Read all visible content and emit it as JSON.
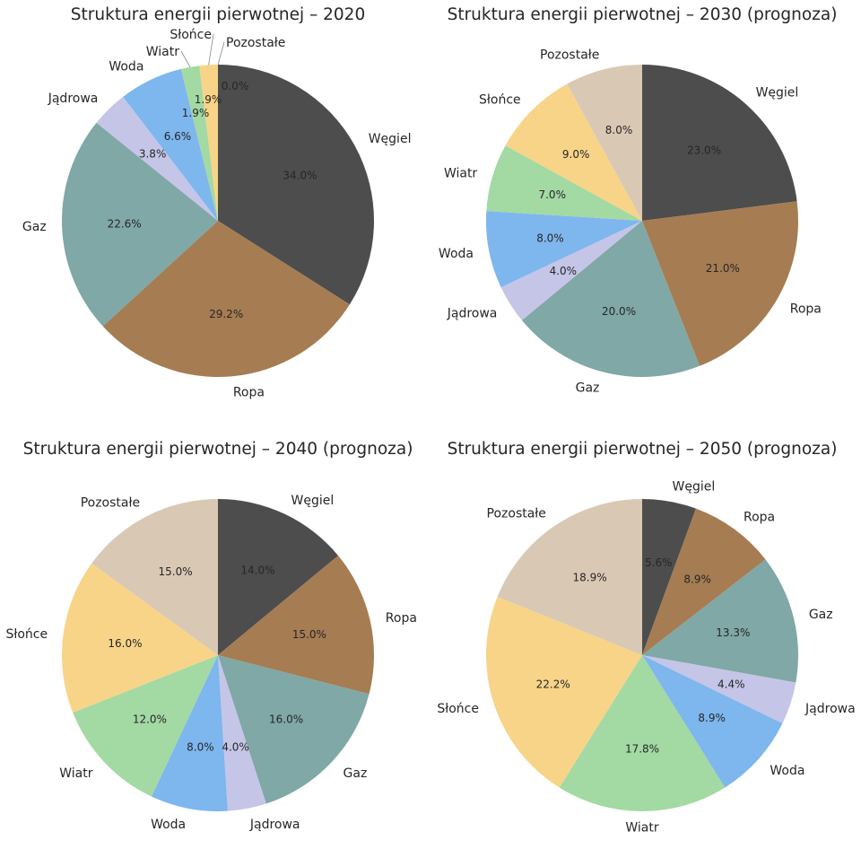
{
  "chart_data": [
    {
      "type": "pie",
      "title": "Struktura energii pierwotnej – 2020",
      "categories": [
        "Węgiel",
        "Ropa",
        "Gaz",
        "Jądrowa",
        "Woda",
        "Wiatr",
        "Słońce",
        "Pozostałe"
      ],
      "values": [
        34.0,
        29.2,
        22.6,
        3.8,
        6.6,
        1.9,
        1.9,
        0.0
      ],
      "pct_labels": [
        "34.0%",
        "29.2%",
        "22.6%",
        "3.8%",
        "6.6%",
        "1.9%",
        "1.9%",
        "0.0%"
      ]
    },
    {
      "type": "pie",
      "title": "Struktura energii pierwotnej – 2030 (prognoza)",
      "categories": [
        "Węgiel",
        "Ropa",
        "Gaz",
        "Jądrowa",
        "Woda",
        "Wiatr",
        "Słońce",
        "Pozostałe"
      ],
      "values": [
        23.0,
        21.0,
        20.0,
        4.0,
        8.0,
        7.0,
        9.0,
        8.0
      ],
      "pct_labels": [
        "23.0%",
        "21.0%",
        "20.0%",
        "4.0%",
        "8.0%",
        "7.0%",
        "9.0%",
        "8.0%"
      ]
    },
    {
      "type": "pie",
      "title": "Struktura energii pierwotnej – 2040 (prognoza)",
      "categories": [
        "Węgiel",
        "Ropa",
        "Gaz",
        "Jądrowa",
        "Woda",
        "Wiatr",
        "Słońce",
        "Pozostałe"
      ],
      "values": [
        14.0,
        15.0,
        16.0,
        4.0,
        8.0,
        12.0,
        16.0,
        15.0
      ],
      "pct_labels": [
        "14.0%",
        "15.0%",
        "16.0%",
        "4.0%",
        "8.0%",
        "12.0%",
        "16.0%",
        "15.0%"
      ]
    },
    {
      "type": "pie",
      "title": "Struktura energii pierwotnej – 2050 (prognoza)",
      "categories": [
        "Węgiel",
        "Ropa",
        "Gaz",
        "Jądrowa",
        "Woda",
        "Wiatr",
        "Słońce",
        "Pozostałe"
      ],
      "values": [
        5.6,
        8.9,
        13.3,
        4.4,
        8.9,
        17.8,
        22.2,
        18.9
      ],
      "pct_labels": [
        "5.6%",
        "8.9%",
        "13.3%",
        "4.4%",
        "8.9%",
        "17.8%",
        "22.2%",
        "18.9%"
      ]
    }
  ],
  "colors": [
    "#4d4d4d",
    "#a67c52",
    "#7fa8a6",
    "#c5c5e8",
    "#7eb6ee",
    "#a3d9a3",
    "#f7d488",
    "#d9c8b4"
  ],
  "start_angle_deg": 90,
  "direction": "clockwise"
}
